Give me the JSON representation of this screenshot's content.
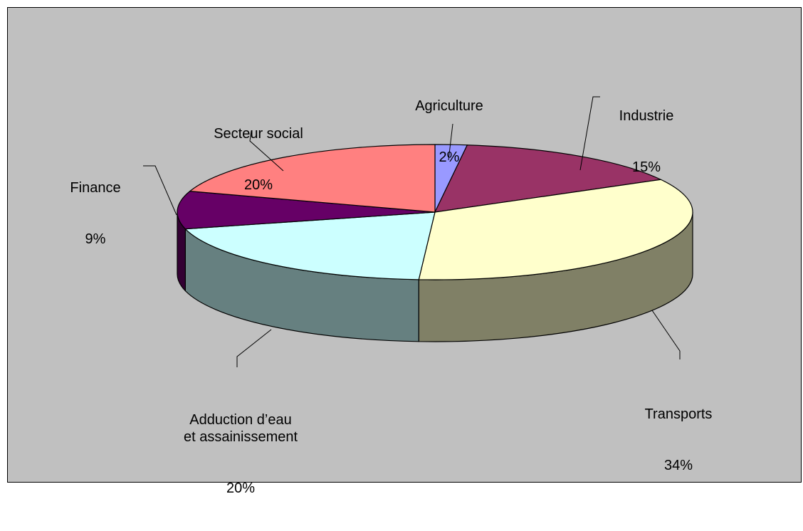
{
  "chart_data": {
    "type": "pie",
    "style": "3d",
    "title": "",
    "slices": [
      {
        "label": "Agriculture",
        "value": 2,
        "pct_text": "2%",
        "color": "#9999ff"
      },
      {
        "label": "Industrie",
        "value": 15,
        "pct_text": "15%",
        "color": "#993366"
      },
      {
        "label": "Transports",
        "value": 34,
        "pct_text": "34%",
        "color": "#ffffcc"
      },
      {
        "label": "Adduction d’eau\net assainissement",
        "value": 20,
        "pct_text": "20%",
        "color": "#ccffff"
      },
      {
        "label": "Finance",
        "value": 9,
        "pct_text": "9%",
        "color": "#660066"
      },
      {
        "label": "Secteur social",
        "value": 20,
        "pct_text": "20%",
        "color": "#ff8080"
      }
    ],
    "background": "#c0c0c0"
  }
}
